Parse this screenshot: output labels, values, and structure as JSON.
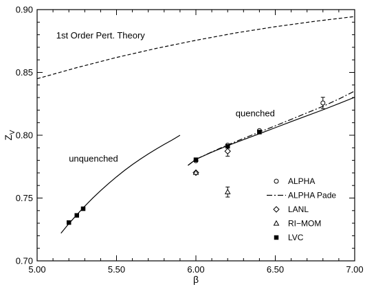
{
  "chart_data": {
    "type": "scatter",
    "xlabel": "β",
    "ylabel": "Z_V",
    "xlim": [
      5.0,
      7.0
    ],
    "ylim": [
      0.7,
      0.9
    ],
    "x_ticks": [
      "5.00",
      "5.50",
      "6.00",
      "6.50",
      "7.00"
    ],
    "y_ticks": [
      "0.70",
      "0.75",
      "0.80",
      "0.85",
      "0.90"
    ],
    "grid": false,
    "legend_position": "bottom-right",
    "annotations": [
      {
        "text": "1st Order Pert. Theory",
        "x": 5.12,
        "y": 0.877
      },
      {
        "text": "quenched",
        "x": 6.25,
        "y": 0.815
      },
      {
        "text": "unquenched",
        "x": 5.2,
        "y": 0.779
      }
    ],
    "curves": [
      {
        "name": "1st Order Pert. Theory",
        "style": "dashed",
        "x": [
          5.0,
          5.25,
          5.5,
          5.75,
          6.0,
          6.25,
          6.5,
          6.75,
          7.0
        ],
        "y": [
          0.845,
          0.8538,
          0.8619,
          0.8691,
          0.8756,
          0.8814,
          0.8864,
          0.8907,
          0.8945
        ]
      },
      {
        "name": "unquenched fit",
        "style": "solid",
        "x": [
          5.15,
          5.2,
          5.25,
          5.3,
          5.35,
          5.4,
          5.45,
          5.5,
          5.55,
          5.6,
          5.65,
          5.7,
          5.75,
          5.8,
          5.85,
          5.9
        ],
        "y": [
          0.722,
          0.7296,
          0.7367,
          0.7435,
          0.7499,
          0.7559,
          0.7616,
          0.7669,
          0.7719,
          0.7766,
          0.781,
          0.7851,
          0.789,
          0.7927,
          0.7962,
          0.8
        ]
      },
      {
        "name": "quenched fit",
        "style": "solid",
        "x": [
          5.95,
          6.0,
          6.1,
          6.2,
          6.3,
          6.4,
          6.5,
          6.6,
          6.7,
          6.8,
          6.9,
          7.0
        ],
        "y": [
          0.776,
          0.7808,
          0.7865,
          0.7917,
          0.7965,
          0.8012,
          0.806,
          0.8108,
          0.8155,
          0.8202,
          0.8252,
          0.8302
        ]
      },
      {
        "name": "ALPHA Pade",
        "style": "dash-dot",
        "x": [
          5.95,
          6.0,
          6.1,
          6.2,
          6.3,
          6.4,
          6.5,
          6.6,
          6.7,
          6.8,
          6.9,
          7.0
        ],
        "y": [
          0.776,
          0.7808,
          0.7867,
          0.7923,
          0.7975,
          0.8025,
          0.8075,
          0.8126,
          0.8178,
          0.823,
          0.8288,
          0.8352
        ]
      }
    ],
    "series": [
      {
        "name": "ALPHA",
        "marker": "open-circle",
        "points": [
          {
            "x": 6.0,
            "y": 0.7797
          },
          {
            "x": 6.2,
            "y": 0.7921
          },
          {
            "x": 6.4,
            "y": 0.8037
          },
          {
            "x": 6.8,
            "y": 0.8257,
            "err": 0.0045
          }
        ]
      },
      {
        "name": "ALPHA Pade",
        "marker": "line"
      },
      {
        "name": "LANL",
        "marker": "open-diamond",
        "points": [
          {
            "x": 6.0,
            "y": 0.7702
          },
          {
            "x": 6.2,
            "y": 0.7873,
            "err": 0.004
          }
        ]
      },
      {
        "name": "RI−MOM",
        "marker": "open-triangle",
        "points": [
          {
            "x": 6.0,
            "y": 0.7702
          },
          {
            "x": 6.2,
            "y": 0.7548,
            "err": 0.004
          }
        ]
      },
      {
        "name": "LVC",
        "marker": "filled-square",
        "points": [
          {
            "x": 5.2,
            "y": 0.7305
          },
          {
            "x": 5.25,
            "y": 0.7362
          },
          {
            "x": 5.29,
            "y": 0.7415
          },
          {
            "x": 6.0,
            "y": 0.7805
          },
          {
            "x": 6.2,
            "y": 0.7912
          },
          {
            "x": 6.4,
            "y": 0.8025
          }
        ]
      }
    ]
  }
}
